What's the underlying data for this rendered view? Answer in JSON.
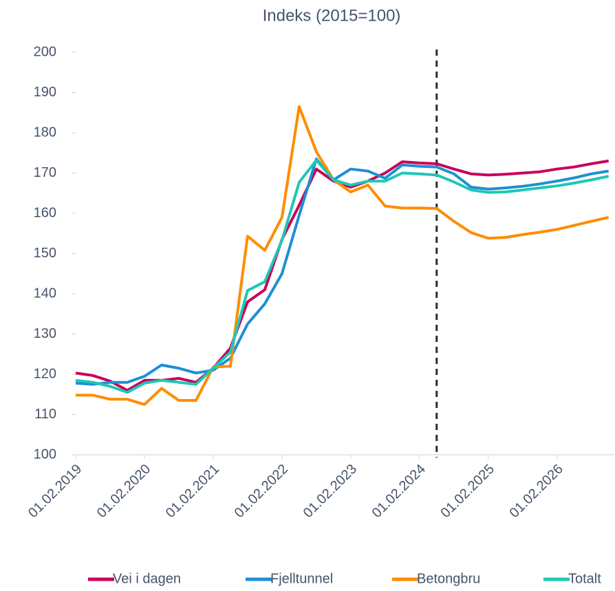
{
  "chart_data": {
    "type": "line",
    "title": "Indeks (2015=100)",
    "x": [
      "01.02.2019",
      "01.05.2019",
      "01.08.2019",
      "01.11.2019",
      "01.02.2020",
      "01.05.2020",
      "01.08.2020",
      "01.11.2020",
      "01.02.2021",
      "01.05.2021",
      "01.08.2021",
      "01.11.2021",
      "01.02.2022",
      "01.05.2022",
      "01.08.2022",
      "01.11.2022",
      "01.02.2023",
      "01.05.2023",
      "01.08.2023",
      "01.11.2023",
      "01.02.2024",
      "01.05.2024",
      "01.08.2024",
      "01.11.2024",
      "01.02.2025",
      "01.05.2025",
      "01.08.2025",
      "01.11.2025",
      "01.02.2026",
      "01.05.2026",
      "01.08.2026",
      "01.11.2026"
    ],
    "series": [
      {
        "name": "Vei i dagen",
        "color": "#c8005a",
        "values": [
          120.3,
          119.7,
          118.3,
          116,
          118.5,
          118.5,
          119,
          118,
          121.5,
          126.5,
          138,
          141,
          153.5,
          162,
          171,
          168,
          166.5,
          168,
          170,
          172.8,
          172.5,
          172.3,
          171,
          169.8,
          169.5,
          169.7,
          170,
          170.3,
          171,
          171.5,
          172.3,
          173
        ]
      },
      {
        "name": "Fjelltunnel",
        "color": "#1e8fd6",
        "values": [
          117.8,
          117.5,
          118,
          118,
          119.5,
          122.3,
          121.5,
          120.3,
          121,
          124,
          132.5,
          137.5,
          145,
          159.5,
          173.5,
          168.3,
          171,
          170.5,
          168.7,
          172,
          171.7,
          171.5,
          169.8,
          166.5,
          166,
          166.3,
          166.7,
          167.3,
          168,
          168.8,
          169.8,
          170.5
        ]
      },
      {
        "name": "Betongbru",
        "color": "#ff8c00",
        "values": [
          114.8,
          114.8,
          113.8,
          113.8,
          112.5,
          116.5,
          113.5,
          113.5,
          121.8,
          122,
          154.3,
          150.8,
          159,
          186.5,
          175.3,
          168.3,
          165.3,
          167,
          161.8,
          161.3,
          161.3,
          161.2,
          158,
          155.2,
          153.8,
          154,
          154.7,
          155.3,
          156,
          157,
          158,
          159
        ]
      },
      {
        "name": "Totalt",
        "color": "#1ec8b4",
        "values": [
          118.5,
          118,
          117,
          115.5,
          117.8,
          118.5,
          118,
          117.5,
          121.5,
          125.5,
          140.8,
          143,
          153.3,
          167.7,
          173.2,
          168.3,
          167,
          168,
          168,
          170,
          169.8,
          169.5,
          167.8,
          165.8,
          165.2,
          165.3,
          165.8,
          166.3,
          166.8,
          167.5,
          168.3,
          169.2
        ]
      }
    ],
    "xlim": [
      "01.02.2019",
      "01.12.2026"
    ],
    "xticks": [
      "01.02.2019",
      "01.02.2020",
      "01.02.2021",
      "01.02.2022",
      "01.02.2023",
      "01.02.2024",
      "01.02.2025",
      "01.02.2026"
    ],
    "ylim": [
      100,
      200
    ],
    "yticks": [
      100,
      110,
      120,
      130,
      140,
      150,
      160,
      170,
      180,
      190,
      200
    ],
    "vline": "01.05.2024",
    "legend": "bottom"
  }
}
